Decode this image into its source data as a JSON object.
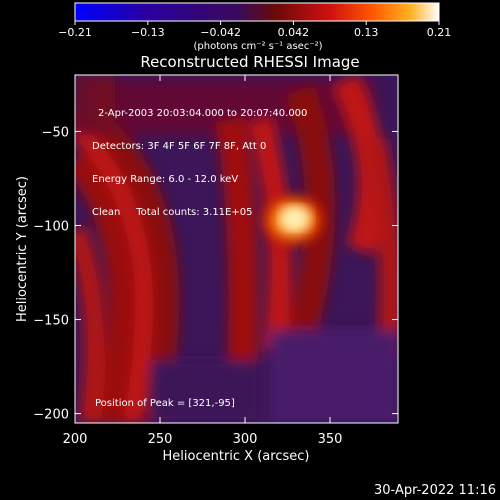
{
  "chart_data": {
    "type": "heatmap",
    "title": "Reconstructed RHESSI Image",
    "xlabel": "Heliocentric X (arcsec)",
    "ylabel": "Heliocentric Y (arcsec)",
    "xlim": [
      200,
      390
    ],
    "ylim": [
      -205,
      -20
    ],
    "x_ticks": [
      200,
      250,
      300,
      350
    ],
    "y_ticks": [
      -50,
      -100,
      -150,
      -200
    ],
    "colorbar": {
      "range": [
        -0.21,
        0.21
      ],
      "ticks": [
        "-0.21",
        "-0.13",
        "-0.042",
        "0.042",
        "0.13",
        "0.21"
      ],
      "unit_label": "(photons cm⁻² s⁻¹ asec⁻²)",
      "colors": [
        "#0000ff",
        "#2a00a0",
        "#3a0a5a",
        "#6a0a0a",
        "#d01010",
        "#ff5a00",
        "#ffb020",
        "#ffffff"
      ]
    },
    "annotations": [
      "2-Apr-2003 20:03:04.000 to 20:07:40.000",
      "Detectors: 3F 4F 5F 6F 7F 8F, Att 0",
      "Energy Range: 6.0 - 12.0 keV",
      "Clean     Total counts: 3.11E+05"
    ],
    "peak_label": "Position of Peak = [321,-95]",
    "peak": [
      321,
      -95
    ]
  },
  "timestamp": "30-Apr-2022 11:16"
}
